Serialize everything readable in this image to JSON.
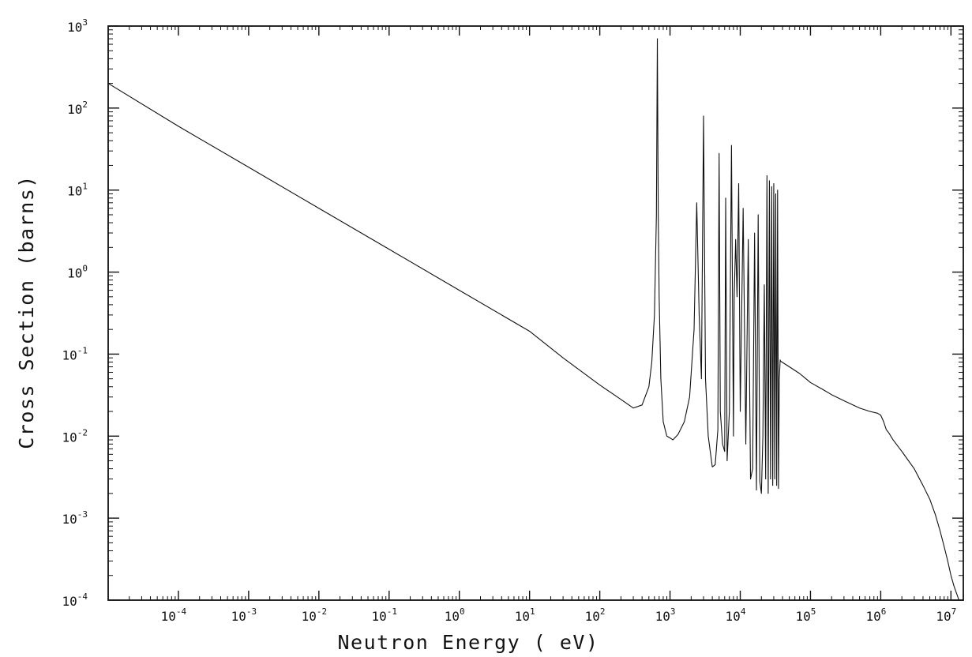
{
  "chart_data": {
    "type": "line",
    "title": "",
    "xlabel": "Neutron Energy ( eV)",
    "ylabel": "Cross Section (barns)",
    "xscale": "log",
    "yscale": "log",
    "xlim": [
      1e-05,
      15000000
    ],
    "ylim": [
      0.0001,
      1000
    ],
    "grid": false,
    "legend": "none",
    "x_ticks": [
      {
        "base": "10",
        "exp": "-4",
        "value": 0.0001
      },
      {
        "base": "10",
        "exp": "-3",
        "value": 0.001
      },
      {
        "base": "10",
        "exp": "-2",
        "value": 0.01
      },
      {
        "base": "10",
        "exp": "-1",
        "value": 0.1
      },
      {
        "base": "10",
        "exp": "0",
        "value": 1
      },
      {
        "base": "10",
        "exp": "1",
        "value": 10
      },
      {
        "base": "10",
        "exp": "2",
        "value": 100
      },
      {
        "base": "10",
        "exp": "3",
        "value": 1000
      },
      {
        "base": "10",
        "exp": "4",
        "value": 10000
      },
      {
        "base": "10",
        "exp": "5",
        "value": 100000
      },
      {
        "base": "10",
        "exp": "6",
        "value": 1000000
      },
      {
        "base": "10",
        "exp": "7",
        "value": 10000000
      }
    ],
    "y_ticks": [
      {
        "base": "10",
        "exp": "-4",
        "value": 0.0001
      },
      {
        "base": "10",
        "exp": "-3",
        "value": 0.001
      },
      {
        "base": "10",
        "exp": "-2",
        "value": 0.01
      },
      {
        "base": "10",
        "exp": "-1",
        "value": 0.1
      },
      {
        "base": "10",
        "exp": "0",
        "value": 1
      },
      {
        "base": "10",
        "exp": "1",
        "value": 10
      },
      {
        "base": "10",
        "exp": "2",
        "value": 100
      },
      {
        "base": "10",
        "exp": "3",
        "value": 1000
      }
    ],
    "series": [
      {
        "x": [
          1e-05,
          0.0001,
          0.001,
          0.01,
          0.1,
          1,
          10,
          30,
          100,
          200,
          300,
          400,
          500,
          550,
          600,
          640,
          660,
          680,
          700,
          740,
          800,
          900,
          1000,
          1100,
          1300,
          1600,
          1900,
          2200,
          2400,
          2600,
          2800,
          3000,
          3200,
          3500,
          4000
        ],
        "y": [
          200,
          60,
          19,
          6,
          1.9,
          0.6,
          0.19,
          0.09,
          0.042,
          0.028,
          0.022,
          0.024,
          0.04,
          0.08,
          0.3,
          5,
          700,
          5,
          0.5,
          0.05,
          0.015,
          0.01,
          0.0095,
          0.009,
          0.0105,
          0.015,
          0.03,
          0.2,
          7,
          0.3,
          0.05,
          80,
          0.05,
          0.01,
          0.0042
        ]
      },
      {
        "x": [
          4000,
          4400,
          4800,
          5000,
          5200,
          5600,
          6000,
          6200,
          6500,
          7000,
          7500,
          8000,
          8200,
          8600,
          9000,
          9500,
          10000,
          11000,
          12000,
          13000,
          14000,
          15000,
          16000,
          17000,
          18000,
          19000,
          20000,
          21000,
          22000,
          23000,
          24000,
          25000,
          26000,
          27000,
          28000,
          29000,
          30000,
          31000,
          32000,
          33000,
          34000,
          35000,
          36000,
          37000,
          37500
        ],
        "y": [
          0.0042,
          0.0045,
          0.012,
          28,
          0.02,
          0.008,
          0.0065,
          8,
          0.005,
          0.02,
          35,
          0.01,
          0.5,
          2.5,
          0.5,
          12,
          0.02,
          6,
          0.008,
          2.5,
          0.003,
          0.004,
          3,
          0.0022,
          5,
          0.0028,
          0.002,
          0.01,
          0.7,
          0.003,
          15,
          0.002,
          13,
          0.003,
          11,
          0.0025,
          12,
          0.003,
          9,
          0.0025,
          10,
          0.0023,
          0.05,
          0.085,
          0.082
        ]
      },
      {
        "x": [
          37500,
          50000,
          70000,
          100000,
          150000,
          200000,
          300000,
          500000,
          700000,
          900000,
          1000000,
          1100000,
          1200000,
          1300000,
          1500000,
          2000000,
          3000000,
          4000000,
          5000000,
          6000000,
          7000000,
          8000000,
          9000000,
          10000000,
          11000000,
          13000000
        ],
        "y": [
          0.082,
          0.07,
          0.058,
          0.045,
          0.037,
          0.032,
          0.027,
          0.022,
          0.02,
          0.019,
          0.018,
          0.015,
          0.012,
          0.011,
          0.009,
          0.0065,
          0.004,
          0.0025,
          0.0017,
          0.0011,
          0.0007,
          0.00045,
          0.0003,
          0.0002,
          0.00015,
          0.0001
        ]
      }
    ],
    "annotations": []
  }
}
